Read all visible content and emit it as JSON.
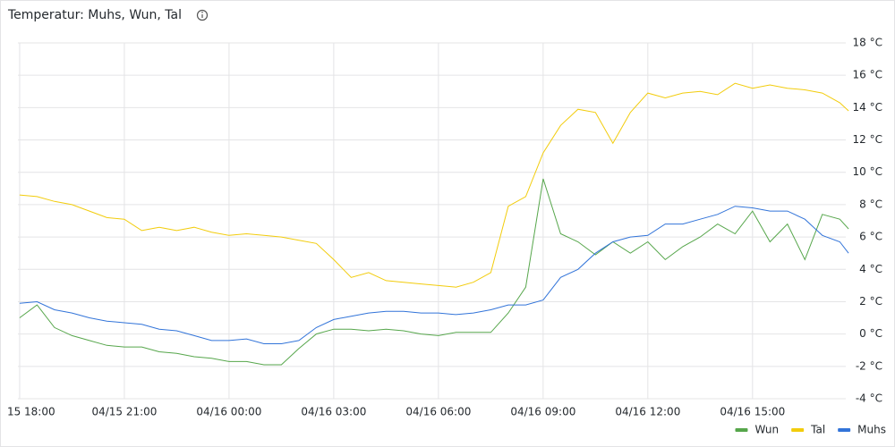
{
  "chart_data": {
    "type": "line",
    "title": "Temperatur: Muhs, Wun, Tal",
    "x": [
      "04/15 18:00",
      "04/15 18:30",
      "04/15 19:00",
      "04/15 19:30",
      "04/15 20:00",
      "04/15 20:30",
      "04/15 21:00",
      "04/15 21:30",
      "04/15 22:00",
      "04/15 22:30",
      "04/15 23:00",
      "04/15 23:30",
      "04/16 00:00",
      "04/16 00:30",
      "04/16 01:00",
      "04/16 01:30",
      "04/16 02:00",
      "04/16 02:30",
      "04/16 03:00",
      "04/16 03:30",
      "04/16 04:00",
      "04/16 04:30",
      "04/16 05:00",
      "04/16 05:30",
      "04/16 06:00",
      "04/16 06:30",
      "04/16 07:00",
      "04/16 07:30",
      "04/16 08:00",
      "04/16 08:30",
      "04/16 09:00",
      "04/16 09:30",
      "04/16 10:00",
      "04/16 10:30",
      "04/16 11:00",
      "04/16 11:30",
      "04/16 12:00",
      "04/16 12:30",
      "04/16 13:00",
      "04/16 13:30",
      "04/16 14:00",
      "04/16 14:30",
      "04/16 15:00",
      "04/16 15:30",
      "04/16 16:00",
      "04/16 16:30",
      "04/16 17:00",
      "04/16 17:30",
      "04/16 17:45"
    ],
    "series": [
      {
        "name": "Wun",
        "color": "#56a64b",
        "values": [
          1.0,
          1.8,
          0.4,
          -0.1,
          -0.4,
          -0.7,
          -0.8,
          -0.8,
          -1.1,
          -1.2,
          -1.4,
          -1.5,
          -1.7,
          -1.7,
          -1.9,
          -1.9,
          -0.9,
          0.0,
          0.3,
          0.3,
          0.2,
          0.3,
          0.2,
          0.0,
          -0.1,
          0.1,
          0.1,
          0.1,
          1.3,
          2.9,
          9.6,
          6.2,
          5.7,
          4.9,
          5.7,
          5.0,
          5.7,
          4.6,
          5.4,
          6.0,
          6.8,
          6.2,
          7.6,
          5.7,
          6.8,
          4.6,
          7.4,
          7.1,
          6.5
        ]
      },
      {
        "name": "Tal",
        "color": "#f2cc0c",
        "values": [
          8.6,
          8.5,
          8.2,
          8.0,
          7.6,
          7.2,
          7.1,
          6.4,
          6.6,
          6.4,
          6.6,
          6.3,
          6.1,
          6.2,
          6.1,
          6.0,
          5.8,
          5.6,
          4.6,
          3.5,
          3.8,
          3.3,
          3.2,
          3.1,
          3.0,
          2.9,
          3.2,
          3.8,
          7.9,
          8.5,
          11.2,
          12.9,
          13.9,
          13.7,
          11.8,
          13.7,
          14.9,
          14.6,
          14.9,
          15.0,
          14.8,
          15.5,
          15.2,
          15.4,
          15.2,
          15.1,
          14.9,
          14.3,
          13.8
        ]
      },
      {
        "name": "Muhs",
        "color": "#3274d9",
        "values": [
          1.9,
          2.0,
          1.5,
          1.3,
          1.0,
          0.8,
          0.7,
          0.6,
          0.3,
          0.2,
          -0.1,
          -0.4,
          -0.4,
          -0.3,
          -0.6,
          -0.6,
          -0.4,
          0.4,
          0.9,
          1.1,
          1.3,
          1.4,
          1.4,
          1.3,
          1.3,
          1.2,
          1.3,
          1.5,
          1.8,
          1.8,
          2.1,
          3.5,
          4.0,
          5.0,
          5.7,
          6.0,
          6.1,
          6.8,
          6.8,
          7.1,
          7.4,
          7.9,
          7.8,
          7.6,
          7.6,
          7.1,
          6.1,
          5.7,
          5.0
        ]
      }
    ],
    "xlim": [
      "04/15 17:57",
      "04/16 17:48"
    ],
    "xticks": [
      {
        "value": "04/15 18:00",
        "label": "15 18:00"
      },
      "04/15 21:00",
      "04/16 00:00",
      "04/16 03:00",
      "04/16 06:00",
      "04/16 09:00",
      "04/16 12:00",
      "04/16 15:00"
    ],
    "ylim": [
      -4,
      18
    ],
    "yticks": [
      {
        "value": -4,
        "label": "-4 °C"
      },
      {
        "value": -2,
        "label": "-2 °C"
      },
      {
        "value": 0,
        "label": "0 °C"
      },
      {
        "value": 2,
        "label": "2 °C"
      },
      {
        "value": 4,
        "label": "4 °C"
      },
      {
        "value": 6,
        "label": "6 °C"
      },
      {
        "value": 8,
        "label": "8 °C"
      },
      {
        "value": 10,
        "label": "10 °C"
      },
      {
        "value": 12,
        "label": "12 °C"
      },
      {
        "value": 14,
        "label": "14 °C"
      },
      {
        "value": 16,
        "label": "16 °C"
      },
      {
        "value": 18,
        "label": "18 °C"
      }
    ],
    "grid": true,
    "legend": "bottom-right"
  }
}
